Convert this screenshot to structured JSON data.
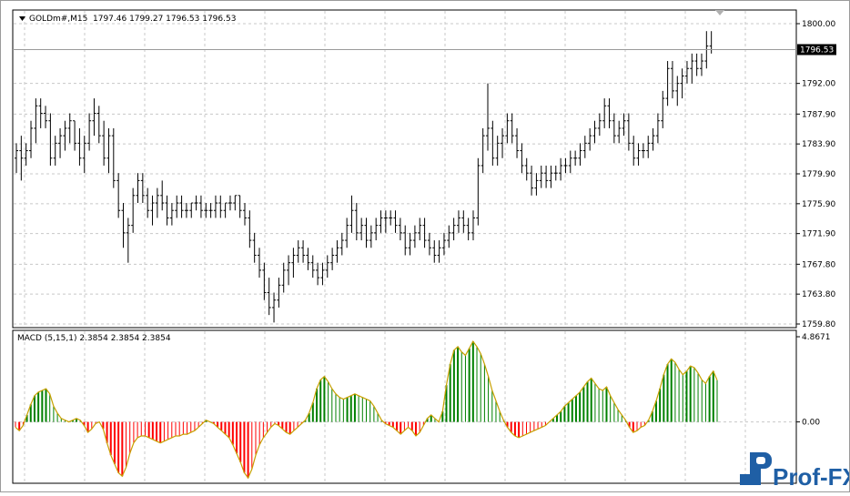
{
  "symbol_header": {
    "symbol": "GOLDm#,M15",
    "ohlc": "1797.46 1799.27 1796.53 1796.53"
  },
  "price_panel": {
    "y_ticks": [
      "1800.00",
      "1796.53",
      "1792.00",
      "1787.90",
      "1783.90",
      "1779.90",
      "1775.90",
      "1771.90",
      "1767.80",
      "1763.80",
      "1759.80"
    ],
    "current_price_label": "1796.53"
  },
  "indicator_panel": {
    "title": "MACD (5,15,1) 2.3854 2.3854 2.3854",
    "y_ticks": [
      "4.8671",
      "0.00"
    ]
  },
  "logo": {
    "text": "Prof-FX"
  },
  "colors": {
    "candle": "#000000",
    "grid": "#c8c8c8",
    "macd_up": "#008000",
    "macd_down": "#ff0000",
    "signal": "#c8a000"
  },
  "chart_data": [
    {
      "type": "candlestick",
      "ylim": [
        1759.8,
        1800.0
      ],
      "current_price": 1796.53,
      "bars": [
        [
          1782,
          1784,
          1780,
          1783
        ],
        [
          1783,
          1785,
          1779,
          1782
        ],
        [
          1782,
          1784,
          1781,
          1783
        ],
        [
          1783,
          1787,
          1782,
          1786
        ],
        [
          1786,
          1790,
          1784,
          1789
        ],
        [
          1789,
          1790,
          1786,
          1788
        ],
        [
          1788,
          1789,
          1786,
          1787
        ],
        [
          1787,
          1788,
          1781,
          1782
        ],
        [
          1782,
          1785,
          1781,
          1784
        ],
        [
          1784,
          1786,
          1782,
          1785
        ],
        [
          1785,
          1787,
          1783,
          1786
        ],
        [
          1786,
          1788,
          1784,
          1787
        ],
        [
          1787,
          1787,
          1783,
          1784
        ],
        [
          1784,
          1786,
          1781,
          1782
        ],
        [
          1782,
          1785,
          1780,
          1784
        ],
        [
          1784,
          1788,
          1783,
          1787
        ],
        [
          1787,
          1790,
          1785,
          1788
        ],
        [
          1788,
          1789,
          1784,
          1785
        ],
        [
          1785,
          1787,
          1781,
          1782
        ],
        [
          1782,
          1786,
          1780,
          1785
        ],
        [
          1785,
          1786,
          1778,
          1779
        ],
        [
          1779,
          1780,
          1774,
          1775
        ],
        [
          1775,
          1776,
          1770,
          1772
        ],
        [
          1772,
          1774,
          1768,
          1773
        ],
        [
          1773,
          1778,
          1772,
          1777
        ],
        [
          1777,
          1780,
          1776,
          1779
        ],
        [
          1779,
          1780,
          1776,
          1777
        ],
        [
          1777,
          1778,
          1774,
          1775
        ],
        [
          1775,
          1777,
          1773,
          1776
        ],
        [
          1776,
          1778,
          1774,
          1777
        ],
        [
          1777,
          1779,
          1775,
          1776
        ],
        [
          1776,
          1777,
          1773,
          1774
        ],
        [
          1774,
          1776,
          1773,
          1775
        ],
        [
          1775,
          1777,
          1774,
          1776
        ],
        [
          1776,
          1777,
          1774,
          1775
        ],
        [
          1775,
          1776,
          1774,
          1775
        ],
        [
          1775,
          1776,
          1774,
          1776
        ],
        [
          1776,
          1777,
          1775,
          1776
        ],
        [
          1776,
          1777,
          1774,
          1775
        ],
        [
          1775,
          1776,
          1774,
          1775
        ],
        [
          1775,
          1776,
          1774,
          1775
        ],
        [
          1775,
          1777,
          1774,
          1776
        ],
        [
          1776,
          1777,
          1774,
          1775
        ],
        [
          1775,
          1776,
          1774,
          1776
        ],
        [
          1776,
          1777,
          1775,
          1776
        ],
        [
          1776,
          1777,
          1775,
          1777
        ],
        [
          1777,
          1777,
          1774,
          1775
        ],
        [
          1775,
          1776,
          1773,
          1774
        ],
        [
          1774,
          1775,
          1770,
          1771
        ],
        [
          1771,
          1772,
          1768,
          1769
        ],
        [
          1769,
          1770,
          1766,
          1767
        ],
        [
          1767,
          1768,
          1763,
          1764
        ],
        [
          1764,
          1766,
          1761,
          1762
        ],
        [
          1762,
          1764,
          1760,
          1763
        ],
        [
          1763,
          1766,
          1762,
          1765
        ],
        [
          1765,
          1768,
          1764,
          1767
        ],
        [
          1767,
          1769,
          1765,
          1768
        ],
        [
          1768,
          1770,
          1766,
          1769
        ],
        [
          1769,
          1771,
          1768,
          1770
        ],
        [
          1770,
          1771,
          1768,
          1769
        ],
        [
          1769,
          1770,
          1767,
          1768
        ],
        [
          1768,
          1769,
          1766,
          1767
        ],
        [
          1767,
          1768,
          1765,
          1766
        ],
        [
          1766,
          1768,
          1765,
          1767
        ],
        [
          1767,
          1769,
          1766,
          1768
        ],
        [
          1768,
          1770,
          1767,
          1769
        ],
        [
          1769,
          1771,
          1768,
          1770
        ],
        [
          1770,
          1772,
          1769,
          1771
        ],
        [
          1771,
          1774,
          1770,
          1773
        ],
        [
          1773,
          1777,
          1772,
          1775
        ],
        [
          1775,
          1776,
          1771,
          1772
        ],
        [
          1772,
          1774,
          1771,
          1773
        ],
        [
          1773,
          1774,
          1770,
          1771
        ],
        [
          1771,
          1773,
          1770,
          1772
        ],
        [
          1772,
          1774,
          1771,
          1773
        ],
        [
          1773,
          1775,
          1772,
          1774
        ],
        [
          1774,
          1775,
          1772,
          1774
        ],
        [
          1774,
          1775,
          1773,
          1774
        ],
        [
          1774,
          1775,
          1772,
          1773
        ],
        [
          1773,
          1774,
          1771,
          1772
        ],
        [
          1772,
          1773,
          1769,
          1770
        ],
        [
          1770,
          1772,
          1769,
          1771
        ],
        [
          1771,
          1773,
          1770,
          1772
        ],
        [
          1772,
          1774,
          1771,
          1773
        ],
        [
          1773,
          1774,
          1770,
          1771
        ],
        [
          1771,
          1772,
          1769,
          1770
        ],
        [
          1770,
          1771,
          1768,
          1769
        ],
        [
          1769,
          1771,
          1768,
          1770
        ],
        [
          1770,
          1772,
          1769,
          1771
        ],
        [
          1771,
          1773,
          1770,
          1772
        ],
        [
          1772,
          1774,
          1771,
          1773
        ],
        [
          1773,
          1775,
          1772,
          1774
        ],
        [
          1774,
          1775,
          1772,
          1773
        ],
        [
          1773,
          1774,
          1771,
          1772
        ],
        [
          1772,
          1775,
          1771,
          1774
        ],
        [
          1774,
          1782,
          1773,
          1781
        ],
        [
          1781,
          1786,
          1780,
          1785
        ],
        [
          1785,
          1792,
          1783,
          1786
        ],
        [
          1786,
          1787,
          1781,
          1782
        ],
        [
          1782,
          1785,
          1781,
          1784
        ],
        [
          1784,
          1786,
          1782,
          1785
        ],
        [
          1785,
          1788,
          1784,
          1787
        ],
        [
          1787,
          1788,
          1784,
          1785
        ],
        [
          1785,
          1786,
          1782,
          1783
        ],
        [
          1783,
          1784,
          1780,
          1781
        ],
        [
          1781,
          1782,
          1779,
          1780
        ],
        [
          1780,
          1781,
          1777,
          1778
        ],
        [
          1778,
          1780,
          1777,
          1779
        ],
        [
          1779,
          1781,
          1778,
          1780
        ],
        [
          1780,
          1781,
          1778,
          1779
        ],
        [
          1779,
          1781,
          1778,
          1780
        ],
        [
          1780,
          1781,
          1779,
          1780
        ],
        [
          1780,
          1782,
          1779,
          1781
        ],
        [
          1781,
          1782,
          1780,
          1781
        ],
        [
          1781,
          1783,
          1780,
          1782
        ],
        [
          1782,
          1783,
          1781,
          1782
        ],
        [
          1782,
          1784,
          1781,
          1783
        ],
        [
          1783,
          1785,
          1782,
          1784
        ],
        [
          1784,
          1786,
          1783,
          1785
        ],
        [
          1785,
          1787,
          1784,
          1786
        ],
        [
          1786,
          1788,
          1785,
          1787
        ],
        [
          1787,
          1790,
          1786,
          1789
        ],
        [
          1789,
          1790,
          1786,
          1787
        ],
        [
          1787,
          1788,
          1784,
          1785
        ],
        [
          1785,
          1787,
          1784,
          1786
        ],
        [
          1786,
          1788,
          1785,
          1787
        ],
        [
          1787,
          1788,
          1783,
          1784
        ],
        [
          1784,
          1785,
          1781,
          1782
        ],
        [
          1782,
          1784,
          1781,
          1783
        ],
        [
          1783,
          1784,
          1782,
          1783
        ],
        [
          1783,
          1785,
          1782,
          1784
        ],
        [
          1784,
          1786,
          1783,
          1785
        ],
        [
          1785,
          1788,
          1784,
          1787
        ],
        [
          1787,
          1791,
          1786,
          1790
        ],
        [
          1790,
          1795,
          1789,
          1794
        ],
        [
          1794,
          1795,
          1790,
          1791
        ],
        [
          1791,
          1793,
          1789,
          1792
        ],
        [
          1792,
          1794,
          1790,
          1793
        ],
        [
          1793,
          1795,
          1792,
          1794
        ],
        [
          1794,
          1796,
          1792,
          1795
        ],
        [
          1795,
          1796,
          1793,
          1794
        ],
        [
          1794,
          1796,
          1793,
          1795
        ],
        [
          1795,
          1799,
          1794,
          1797
        ],
        [
          1797,
          1799,
          1796,
          1796.53
        ]
      ]
    },
    {
      "type": "bar",
      "name": "MACD (5,15,1)",
      "ylim": [
        -3.4,
        4.8671
      ],
      "values": [
        -0.3,
        -0.5,
        -0.2,
        0.4,
        1.0,
        1.5,
        1.7,
        1.8,
        1.9,
        1.6,
        0.9,
        0.5,
        0.2,
        0.1,
        0.0,
        0.1,
        0.2,
        0.1,
        -0.2,
        -0.6,
        -0.4,
        -0.1,
        0.0,
        -0.4,
        -1.2,
        -1.9,
        -2.4,
        -2.9,
        -3.1,
        -2.6,
        -1.8,
        -1.2,
        -0.9,
        -0.8,
        -0.8,
        -0.9,
        -1.0,
        -1.1,
        -1.2,
        -1.1,
        -1.0,
        -0.9,
        -0.8,
        -0.8,
        -0.7,
        -0.7,
        -0.6,
        -0.5,
        -0.3,
        -0.1,
        0.1,
        0.0,
        -0.1,
        -0.3,
        -0.5,
        -0.7,
        -0.9,
        -1.3,
        -1.8,
        -2.3,
        -2.9,
        -3.2,
        -2.7,
        -1.9,
        -1.3,
        -0.9,
        -0.6,
        -0.3,
        -0.1,
        -0.2,
        -0.4,
        -0.6,
        -0.7,
        -0.5,
        -0.3,
        -0.1,
        0.1,
        0.5,
        1.1,
        1.9,
        2.4,
        2.6,
        2.3,
        1.9,
        1.6,
        1.4,
        1.3,
        1.4,
        1.5,
        1.6,
        1.5,
        1.4,
        1.3,
        1.2,
        0.9,
        0.5,
        0.1,
        -0.1,
        -0.2,
        -0.3,
        -0.5,
        -0.7,
        -0.5,
        -0.3,
        -0.5,
        -0.8,
        -0.6,
        -0.2,
        0.2,
        0.4,
        0.2,
        0.0,
        0.6,
        2.1,
        3.3,
        4.1,
        4.3,
        4.0,
        3.8,
        4.2,
        4.6,
        4.3,
        3.9,
        3.3,
        2.6,
        1.8,
        1.2,
        0.6,
        0.1,
        -0.3,
        -0.6,
        -0.8,
        -0.9,
        -0.8,
        -0.7,
        -0.6,
        -0.5,
        -0.4,
        -0.3,
        -0.2,
        0.0,
        0.2,
        0.4,
        0.6,
        0.9,
        1.1,
        1.3,
        1.5,
        1.7,
        2.0,
        2.3,
        2.5,
        2.2,
        1.9,
        1.8,
        2.0,
        1.5,
        1.1,
        0.7,
        0.4,
        0.1,
        -0.3,
        -0.6,
        -0.5,
        -0.3,
        -0.2,
        0.1,
        0.6,
        1.2,
        1.9,
        2.7,
        3.3,
        3.6,
        3.4,
        3.0,
        2.7,
        2.9,
        3.2,
        3.1,
        2.8,
        2.4,
        2.2,
        2.6,
        2.9,
        2.3854
      ]
    }
  ]
}
